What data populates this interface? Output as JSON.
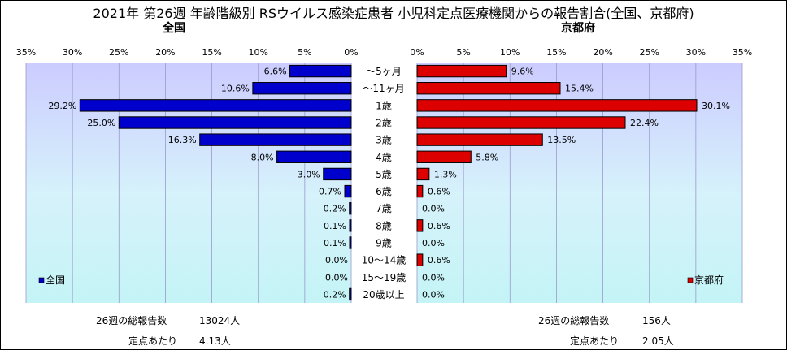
{
  "title": "2021年 第26週 年齢階級別 RSウイルス感染症患者 小児科定点医療機関からの報告割合(全国、京都府)",
  "colors": {
    "national": "#0000cc",
    "kyoto": "#dd0000",
    "plot_bg": "#ccccff"
  },
  "chart_data": [
    {
      "type": "bar",
      "title": "全国",
      "orientation": "horizontal",
      "x_direction": "reversed",
      "categories": [
        "～5ヶ月",
        "～11ヶ月",
        "1歳",
        "2歳",
        "3歳",
        "4歳",
        "5歳",
        "6歳",
        "7歳",
        "8歳",
        "9歳",
        "10～14歳",
        "15～19歳",
        "20歳以上"
      ],
      "series": [
        {
          "name": "全国",
          "values": [
            6.6,
            10.6,
            29.2,
            25.0,
            16.3,
            8.0,
            3.0,
            0.7,
            0.2,
            0.1,
            0.1,
            0.0,
            0.0,
            0.2
          ]
        }
      ],
      "value_labels": [
        "6.6%",
        "10.6%",
        "29.2%",
        "25.0%",
        "16.3%",
        "8.0%",
        "3.0%",
        "0.7%",
        "0.2%",
        "0.1%",
        "0.1%",
        "0.0%",
        "0.0%",
        "0.2%"
      ],
      "xlim": [
        0,
        35
      ],
      "ticks": [
        "35%",
        "30%",
        "25%",
        "20%",
        "15%",
        "10%",
        "5%",
        "0%"
      ],
      "legend": "bottom-left",
      "grid": true
    },
    {
      "type": "bar",
      "title": "京都府",
      "orientation": "horizontal",
      "categories": [
        "～5ヶ月",
        "～11ヶ月",
        "1歳",
        "2歳",
        "3歳",
        "4歳",
        "5歳",
        "6歳",
        "7歳",
        "8歳",
        "9歳",
        "10～14歳",
        "15～19歳",
        "20歳以上"
      ],
      "series": [
        {
          "name": "京都府",
          "values": [
            9.6,
            15.4,
            30.1,
            22.4,
            13.5,
            5.8,
            1.3,
            0.6,
            0.0,
            0.6,
            0.0,
            0.6,
            0.0,
            0.0
          ]
        }
      ],
      "value_labels": [
        "9.6%",
        "15.4%",
        "30.1%",
        "22.4%",
        "13.5%",
        "5.8%",
        "1.3%",
        "0.6%",
        "0.0%",
        "0.6%",
        "0.0%",
        "0.6%",
        "0.0%",
        "0.0%"
      ],
      "xlim": [
        0,
        35
      ],
      "ticks": [
        "0%",
        "5%",
        "10%",
        "15%",
        "20%",
        "25%",
        "30%",
        "35%"
      ],
      "legend": "bottom-right",
      "grid": true
    }
  ],
  "stats": {
    "national": {
      "total_label": "26週の総報告数",
      "total_value": "13024人",
      "per_label": "定点あたり",
      "per_value": "4.13人"
    },
    "kyoto": {
      "total_label": "26週の総報告数",
      "total_value": "156人",
      "per_label": "定点あたり",
      "per_value": "2.05人"
    }
  }
}
